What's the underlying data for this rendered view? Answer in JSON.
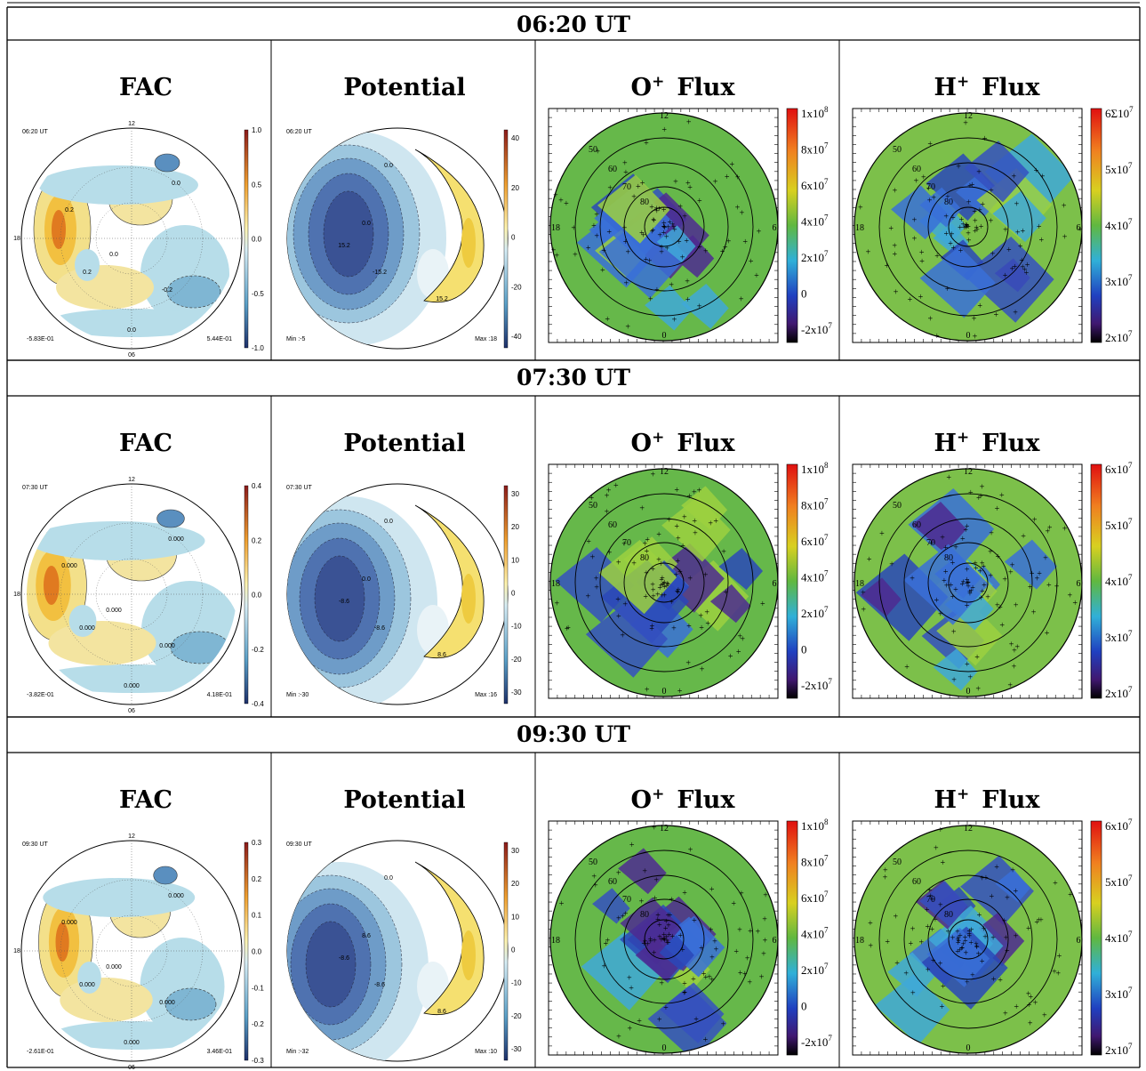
{
  "rows": [
    {
      "time": "06:20 UT",
      "fac": {
        "title": "FAC",
        "time": "06:20 UT",
        "ticks": [
          "1.0",
          "0.5",
          "0.0",
          "-0.5",
          "-1.0"
        ],
        "min": "-5.83E-01",
        "max": "5.44E-01",
        "polar": [
          "12",
          "18",
          "06"
        ],
        "contours": [
          "0.2",
          "0.2",
          "0.0",
          "0.0",
          "-0.2",
          "0.0"
        ]
      },
      "potential": {
        "title": "Potential",
        "time": "06:20 UT",
        "ticks": [
          "40",
          "20",
          "0",
          "-20",
          "-40"
        ],
        "min": "Min :-5",
        "max": "Max :18",
        "contours": [
          "0.0",
          "15.2",
          "-15.2",
          "15.2",
          "0.0"
        ]
      },
      "o_flux": {
        "title": {
          "base": "O",
          "sup": "+",
          "rest": "Flux"
        },
        "ticks": [
          {
            "base": "1x10",
            "exp": "8"
          },
          {
            "base": "8x10",
            "exp": "7"
          },
          {
            "base": "6x10",
            "exp": "7"
          },
          {
            "base": "4x10",
            "exp": "7"
          },
          {
            "base": "2x10",
            "exp": "7"
          },
          {
            "base": "0"
          },
          {
            "base": "-2x10",
            "exp": "7"
          }
        ],
        "polar": [
          "12",
          "18",
          "6",
          "0",
          "50",
          "60",
          "70",
          "80"
        ]
      },
      "h_flux": {
        "title": {
          "base": "H",
          "sup": "+",
          "rest": "Flux"
        },
        "ticks": [
          {
            "base": "6Σ10",
            "exp": "7"
          },
          {
            "base": "5x10",
            "exp": "7"
          },
          {
            "base": "4x10",
            "exp": "7"
          },
          {
            "base": "3x10",
            "exp": "7"
          },
          {
            "base": "2x10",
            "exp": "7"
          }
        ],
        "polar": [
          "12",
          "18",
          "6",
          "0",
          "50",
          "60",
          "70",
          "80"
        ]
      }
    },
    {
      "time": "07:30 UT",
      "fac": {
        "title": "FAC",
        "time": "07:30 UT",
        "ticks": [
          "0.4",
          "0.2",
          "0.0",
          "-0.2",
          "-0.4"
        ],
        "min": "-3.82E-01",
        "max": "4.18E-01",
        "polar": [
          "12",
          "18",
          "06"
        ],
        "contours": [
          "0.000",
          "0.000",
          "0.000",
          "0.000",
          "0.000",
          "0.000"
        ]
      },
      "potential": {
        "title": "Potential",
        "time": "07:30 UT",
        "ticks": [
          "30",
          "20",
          "10",
          "0",
          "-10",
          "-20",
          "-30"
        ],
        "min": "Min :-30",
        "max": "Max :16",
        "contours": [
          "0.0",
          "-8.6",
          "-8.6",
          "8.6",
          "0.0"
        ]
      },
      "o_flux": {
        "title": {
          "base": "O",
          "sup": "+",
          "rest": "Flux"
        },
        "ticks": [
          {
            "base": "1x10",
            "exp": "8"
          },
          {
            "base": "8x10",
            "exp": "7"
          },
          {
            "base": "6x10",
            "exp": "7"
          },
          {
            "base": "4x10",
            "exp": "7"
          },
          {
            "base": "2x10",
            "exp": "7"
          },
          {
            "base": "0"
          },
          {
            "base": "-2x10",
            "exp": "7"
          }
        ],
        "polar": [
          "12",
          "18",
          "6",
          "0",
          "50",
          "60",
          "70",
          "80"
        ]
      },
      "h_flux": {
        "title": {
          "base": "H",
          "sup": "+",
          "rest": "Flux"
        },
        "ticks": [
          {
            "base": "6x10",
            "exp": "7"
          },
          {
            "base": "5x10",
            "exp": "7"
          },
          {
            "base": "4x10",
            "exp": "7"
          },
          {
            "base": "3x10",
            "exp": "7"
          },
          {
            "base": "2x10",
            "exp": "7"
          }
        ],
        "polar": [
          "12",
          "18",
          "6",
          "0",
          "50",
          "60",
          "70",
          "80"
        ]
      }
    },
    {
      "time": "09:30 UT",
      "fac": {
        "title": "FAC",
        "time": "09:30 UT",
        "ticks": [
          "0.3",
          "0.2",
          "0.1",
          "0.0",
          "-0.1",
          "-0.2",
          "-0.3"
        ],
        "min": "-2.61E-01",
        "max": "3.46E-01",
        "polar": [
          "12",
          "18",
          "06"
        ],
        "contours": [
          "0.000",
          "0.000",
          "0.000",
          "0.000",
          "0.000",
          "0.000"
        ]
      },
      "potential": {
        "title": "Potential",
        "time": "09:30 UT",
        "ticks": [
          "30",
          "20",
          "10",
          "0",
          "-10",
          "-20",
          "-30"
        ],
        "min": "Min :-32",
        "max": "Max :10",
        "contours": [
          "0.0",
          "-8.6",
          "-8.6",
          "8.6",
          "8.6"
        ]
      },
      "o_flux": {
        "title": {
          "base": "O",
          "sup": "+",
          "rest": "Flux"
        },
        "ticks": [
          {
            "base": "1x10",
            "exp": "8"
          },
          {
            "base": "8x10",
            "exp": "7"
          },
          {
            "base": "6x10",
            "exp": "7"
          },
          {
            "base": "4x10",
            "exp": "7"
          },
          {
            "base": "2x10",
            "exp": "7"
          },
          {
            "base": "0"
          },
          {
            "base": "-2x10",
            "exp": "7"
          }
        ],
        "polar": [
          "12",
          "18",
          "6",
          "0",
          "50",
          "60",
          "70",
          "80"
        ]
      },
      "h_flux": {
        "title": {
          "base": "H",
          "sup": "+",
          "rest": "Flux"
        },
        "ticks": [
          {
            "base": "6x10",
            "exp": "7"
          },
          {
            "base": "5x10",
            "exp": "7"
          },
          {
            "base": "4x10",
            "exp": "7"
          },
          {
            "base": "3x10",
            "exp": "7"
          },
          {
            "base": "2x10",
            "exp": "7"
          }
        ],
        "polar": [
          "12",
          "18",
          "6",
          "0",
          "50",
          "60",
          "70",
          "80"
        ]
      }
    }
  ]
}
